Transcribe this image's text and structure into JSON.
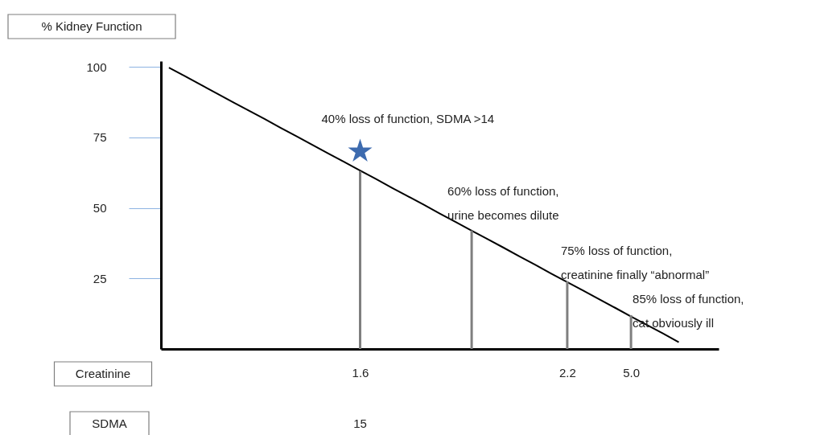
{
  "chart_data": {
    "type": "line",
    "ylabel": "% Kidney Function",
    "xlabel": "Creatinine",
    "categories": [
      null,
      null,
      null,
      null,
      null,
      null,
      null,
      null,
      null,
      null,
      null,
      null,
      "1.6",
      null,
      null,
      null,
      null,
      null,
      null,
      null,
      null,
      null,
      null,
      null,
      null,
      "2.2",
      null,
      null,
      null,
      "5.0",
      null,
      null,
      null,
      null,
      null
    ],
    "ylim": [
      0,
      102
    ],
    "yticks": [
      25,
      50,
      75,
      100
    ],
    "grid": false,
    "series": [
      {
        "color": "#000000",
        "values": [
          99.7,
          96.7,
          93.6,
          90.6,
          87.5,
          84.5,
          81.5,
          78.4,
          75.4,
          72.3,
          69.3,
          66.3,
          63.2,
          60.2,
          57.1,
          54.1,
          51.1,
          48.0,
          45.0,
          41.9,
          38.9,
          35.9,
          32.8,
          29.8,
          26.7,
          23.7,
          20.7,
          17.6,
          14.6,
          11.5,
          8.5,
          5.5,
          2.4,
          null,
          null
        ],
        "line_style": "solid",
        "marker": "none"
      },
      {
        "type": "bar",
        "color": "#7f7f7f",
        "values": [
          null,
          null,
          null,
          null,
          null,
          null,
          null,
          null,
          null,
          null,
          null,
          null,
          63,
          null,
          null,
          null,
          null,
          null,
          null,
          42,
          null,
          null,
          null,
          null,
          null,
          24,
          null,
          null,
          null,
          12,
          null,
          null,
          null,
          null,
          null
        ]
      },
      {
        "type": "scatter",
        "color": "#3d6baf",
        "values": [
          null,
          null,
          null,
          null,
          null,
          null,
          null,
          null,
          null,
          null,
          null,
          null,
          70,
          null,
          null,
          null,
          null,
          null,
          null,
          null,
          null,
          null,
          null,
          null,
          null,
          null,
          null,
          null,
          null,
          null,
          null,
          null,
          null,
          null,
          null
        ],
        "marker": "star"
      }
    ],
    "annotations": [
      "40% loss of function, SDMA >14",
      "60% loss of function,\nurine becomes dilute",
      "75% loss of function,\ncreatinine finally “abnormal”",
      "85% loss of function,\ncat obviously ill",
      "SDMA",
      "15"
    ]
  }
}
